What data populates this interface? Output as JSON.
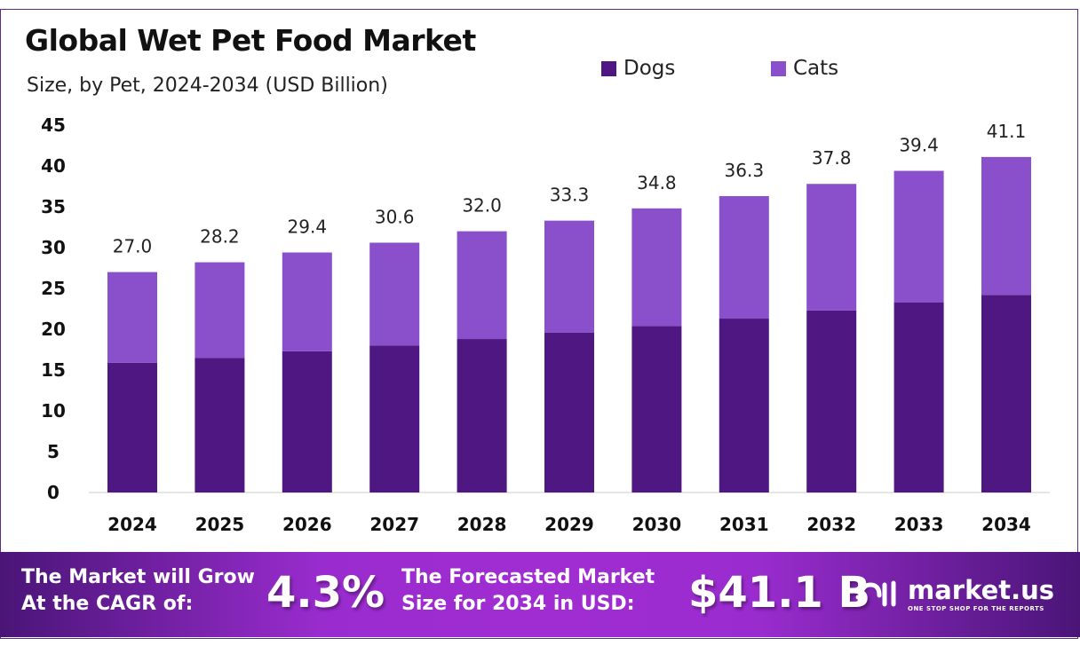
{
  "chart_data": {
    "type": "bar",
    "stacked": true,
    "title": "Global Wet Pet Food Market",
    "subtitle": "Size, by Pet, 2024-2034 (USD Billion)",
    "categories": [
      "2024",
      "2025",
      "2026",
      "2027",
      "2028",
      "2029",
      "2030",
      "2031",
      "2032",
      "2033",
      "2034"
    ],
    "series": [
      {
        "name": "Dogs",
        "color": "#4f1782",
        "values": [
          15.9,
          16.5,
          17.3,
          18.0,
          18.8,
          19.6,
          20.4,
          21.3,
          22.3,
          23.3,
          24.2
        ]
      },
      {
        "name": "Cats",
        "color": "#8a4fcb",
        "values": [
          11.1,
          11.7,
          12.1,
          12.6,
          13.2,
          13.7,
          14.4,
          15.0,
          15.5,
          16.1,
          16.9
        ]
      }
    ],
    "totals": [
      "27.0",
      "28.2",
      "29.4",
      "30.6",
      "32.0",
      "33.3",
      "34.8",
      "36.3",
      "37.8",
      "39.4",
      "41.1"
    ],
    "ylim": [
      0,
      45
    ],
    "yticks": [
      "0",
      "5",
      "10",
      "15",
      "20",
      "25",
      "30",
      "35",
      "40",
      "45"
    ],
    "grid": false,
    "legend_position": "top-right"
  },
  "banner": {
    "cagr_label_1": "The Market will Grow",
    "cagr_label_2": "At the CAGR of:",
    "cagr_value": "4.3%",
    "forecast_label_1": "The Forecasted Market",
    "forecast_label_2": "Size for 2034 in USD:",
    "forecast_value": "$41.1 B",
    "logo_name": "market.us",
    "logo_tagline": "ONE STOP SHOP FOR THE REPORTS"
  }
}
